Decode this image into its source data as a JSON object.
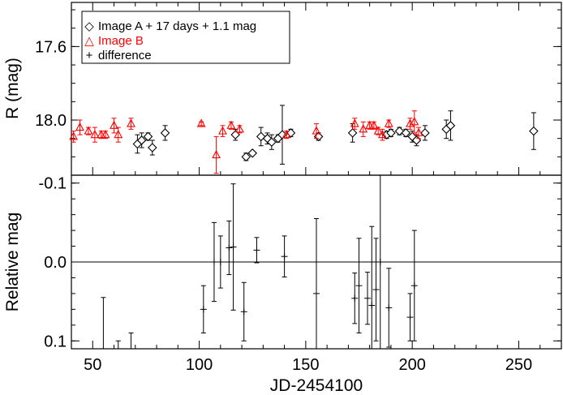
{
  "chart_data": [
    {
      "type": "scatter",
      "ylabel": "R (mag)",
      "ylim": [
        18.3,
        17.36
      ],
      "yticks": [
        17.6,
        18.0
      ],
      "xlim": [
        40,
        270
      ],
      "legend_position": "top-left",
      "legend": [
        {
          "symbol": "◇",
          "label": "Image A + 17 days + 1.1 mag",
          "color": "#000000"
        },
        {
          "symbol": "△",
          "label": "Image B",
          "color": "#ff0000"
        },
        {
          "symbol": "+",
          "label": "difference",
          "color": "#000000"
        }
      ],
      "series": [
        {
          "name": "Image A + 17 days + 1.1 mag",
          "marker": "diamond",
          "color": "#000000",
          "points": [
            {
              "x": 71,
              "y": 18.13,
              "err": 0.05
            },
            {
              "x": 73,
              "y": 18.11,
              "err": 0.04
            },
            {
              "x": 76,
              "y": 18.09,
              "err": 0.02
            },
            {
              "x": 78,
              "y": 18.15,
              "err": 0.04
            },
            {
              "x": 84,
              "y": 18.07,
              "err": 0.04
            },
            {
              "x": 117,
              "y": 18.08,
              "err": 0.03
            },
            {
              "x": 122,
              "y": 18.2,
              "err": 0.02
            },
            {
              "x": 125,
              "y": 18.18,
              "err": 0.01
            },
            {
              "x": 129,
              "y": 18.09,
              "err": 0.05
            },
            {
              "x": 132,
              "y": 18.1,
              "err": 0.03
            },
            {
              "x": 134,
              "y": 18.12,
              "err": 0.04
            },
            {
              "x": 137,
              "y": 18.1,
              "err": 0.02
            },
            {
              "x": 139,
              "y": 18.08,
              "err": 0.16
            },
            {
              "x": 143,
              "y": 18.07,
              "err": 0.02
            },
            {
              "x": 156,
              "y": 18.09,
              "err": 0.02
            },
            {
              "x": 172,
              "y": 18.07,
              "err": 0.05
            },
            {
              "x": 188,
              "y": 18.08,
              "err": 0.02
            },
            {
              "x": 190,
              "y": 18.07,
              "err": 0.02
            },
            {
              "x": 194,
              "y": 18.06,
              "err": 0.02
            },
            {
              "x": 197,
              "y": 18.07,
              "err": 0.02
            },
            {
              "x": 200,
              "y": 18.09,
              "err": 0.03
            },
            {
              "x": 202,
              "y": 18.11,
              "err": 0.03
            },
            {
              "x": 206,
              "y": 18.07,
              "err": 0.04
            },
            {
              "x": 216,
              "y": 18.05,
              "err": 0.05
            },
            {
              "x": 218,
              "y": 18.03,
              "err": 0.08
            },
            {
              "x": 257,
              "y": 18.06,
              "err": 0.1
            }
          ]
        },
        {
          "name": "Image B",
          "marker": "triangle",
          "color": "#ff0000",
          "points": [
            {
              "x": 41,
              "y": 18.09,
              "err": 0.03
            },
            {
              "x": 44,
              "y": 18.04,
              "err": 0.04
            },
            {
              "x": 48,
              "y": 18.06,
              "err": 0.02
            },
            {
              "x": 51,
              "y": 18.08,
              "err": 0.04
            },
            {
              "x": 54,
              "y": 18.08,
              "err": 0.02
            },
            {
              "x": 56,
              "y": 18.08,
              "err": 0.02
            },
            {
              "x": 60,
              "y": 18.03,
              "err": 0.04
            },
            {
              "x": 62,
              "y": 18.08,
              "err": 0.04
            },
            {
              "x": 68,
              "y": 18.02,
              "err": 0.03
            },
            {
              "x": 101,
              "y": 18.02,
              "err": 0.01
            },
            {
              "x": 108,
              "y": 18.19,
              "err": 0.1
            },
            {
              "x": 111,
              "y": 18.06,
              "err": 0.03
            },
            {
              "x": 115,
              "y": 18.03,
              "err": 0.02
            },
            {
              "x": 119,
              "y": 18.05,
              "err": 0.02
            },
            {
              "x": 141,
              "y": 18.08,
              "err": 0.02
            },
            {
              "x": 155,
              "y": 18.06,
              "err": 0.04
            },
            {
              "x": 173,
              "y": 18.02,
              "err": 0.03
            },
            {
              "x": 177,
              "y": 18.05,
              "err": 0.04
            },
            {
              "x": 180,
              "y": 18.03,
              "err": 0.02
            },
            {
              "x": 182,
              "y": 18.03,
              "err": 0.02
            },
            {
              "x": 184,
              "y": 18.06,
              "err": 0.02
            },
            {
              "x": 186,
              "y": 18.08,
              "err": 0.03
            },
            {
              "x": 189,
              "y": 18.02,
              "err": 0.02
            },
            {
              "x": 199,
              "y": 18.02,
              "err": 0.03
            },
            {
              "x": 201,
              "y": 18.01,
              "err": 0.06
            },
            {
              "x": 203,
              "y": 18.07,
              "err": 0.03
            }
          ]
        }
      ]
    },
    {
      "type": "scatter",
      "xlabel": "JD-2454100",
      "ylabel": "Relative mag",
      "ylim": [
        0.11,
        -0.11
      ],
      "yticks": [
        -0.1,
        0.0,
        0.1
      ],
      "xlim": [
        40,
        270
      ],
      "xticks": [
        50,
        100,
        150,
        200,
        250
      ],
      "reference_line_y": 0.0,
      "series": [
        {
          "name": "difference",
          "marker": "plus",
          "color": "#000000",
          "points": [
            {
              "x": 55,
              "y": 0.115,
              "err": 0.07
            },
            {
              "x": 62,
              "y": 0.12,
              "err": 0.02
            },
            {
              "x": 68,
              "y": 0.12,
              "err": 0.03
            },
            {
              "x": 102,
              "y": 0.06,
              "err": 0.03
            },
            {
              "x": 107,
              "y": 0.0,
              "err": 0.05
            },
            {
              "x": 110,
              "y": 0.0,
              "err": 0.033
            },
            {
              "x": 114,
              "y": -0.018,
              "err": 0.034
            },
            {
              "x": 116,
              "y": -0.019,
              "err": 0.08
            },
            {
              "x": 121,
              "y": 0.063,
              "err": 0.037
            },
            {
              "x": 127,
              "y": -0.015,
              "err": 0.016
            },
            {
              "x": 140,
              "y": -0.007,
              "err": 0.026
            },
            {
              "x": 155,
              "y": 0.04,
              "err": 0.095
            },
            {
              "x": 173,
              "y": 0.046,
              "err": 0.032
            },
            {
              "x": 175,
              "y": 0.03,
              "err": 0.06
            },
            {
              "x": 179,
              "y": 0.046,
              "err": 0.033
            },
            {
              "x": 181,
              "y": 0.055,
              "err": 0.1
            },
            {
              "x": 183,
              "y": 0.035,
              "err": 0.065
            },
            {
              "x": 185,
              "y": 0.0,
              "err": 0.11
            },
            {
              "x": 189,
              "y": 0.058,
              "err": 0.05
            },
            {
              "x": 199,
              "y": 0.07,
              "err": 0.03
            },
            {
              "x": 201,
              "y": 0.03,
              "err": 0.07
            }
          ]
        }
      ]
    }
  ]
}
